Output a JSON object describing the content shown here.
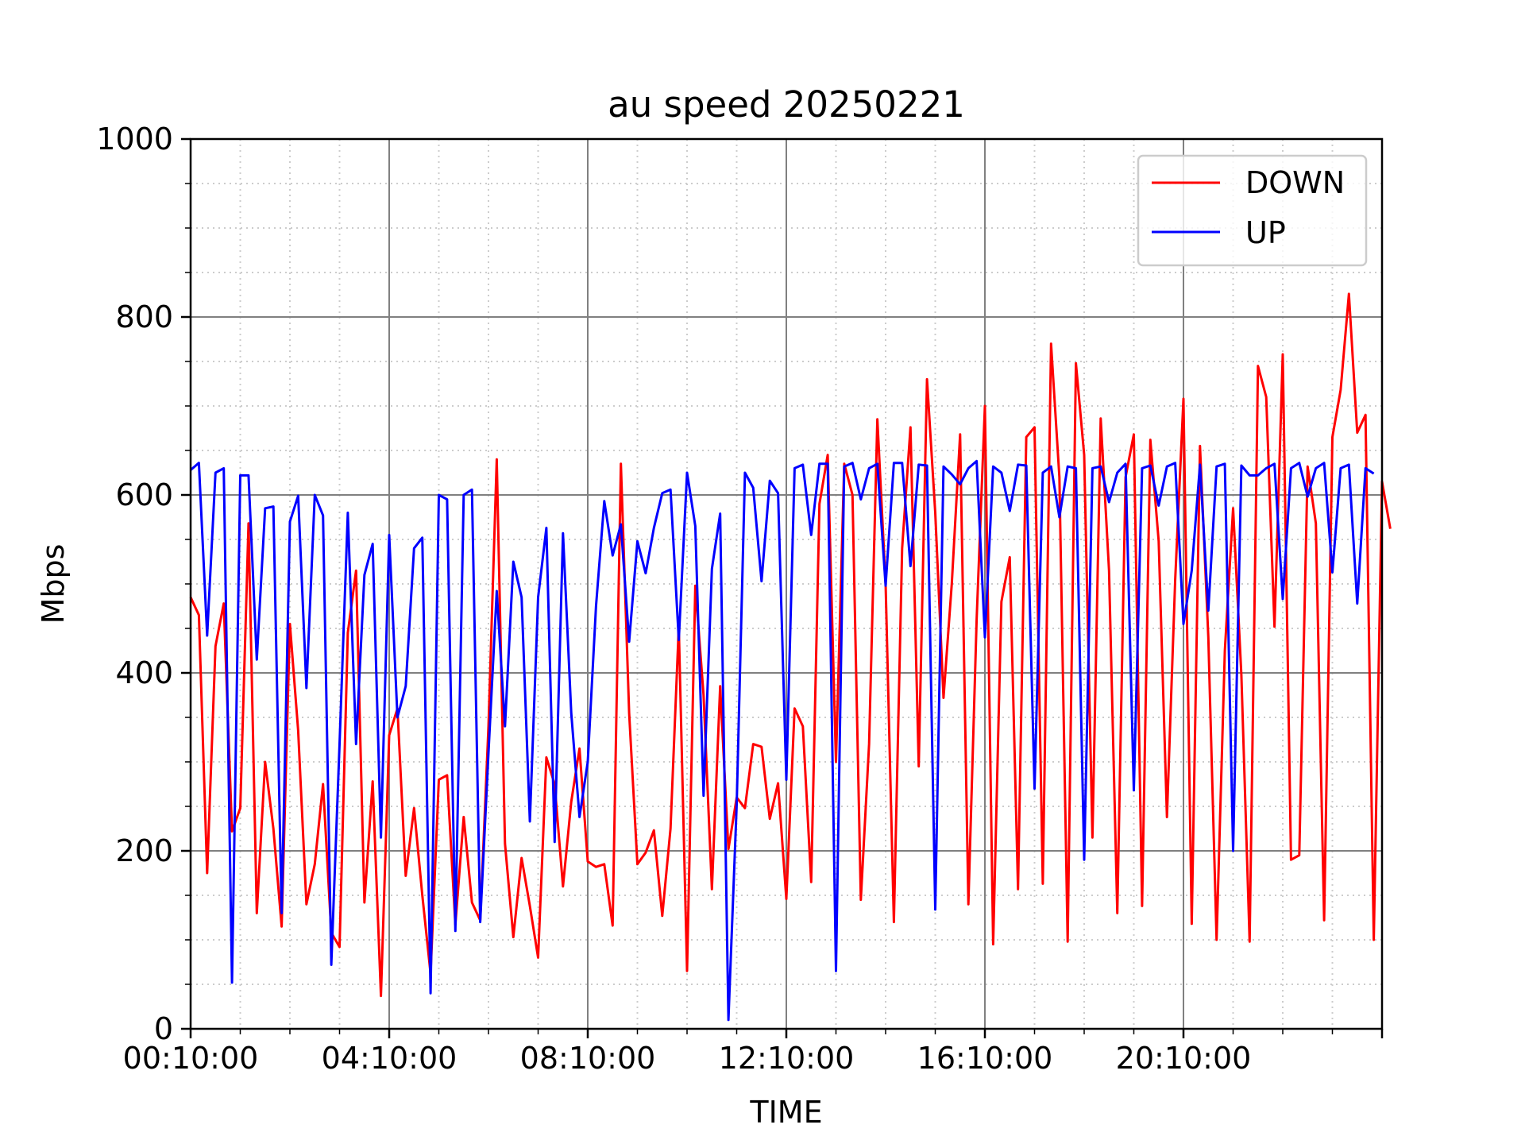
{
  "chart_data": {
    "type": "line",
    "title": "au speed 20250221",
    "xlabel": "TIME",
    "ylabel": "Mbps",
    "ylim": [
      0,
      1000
    ],
    "xlim": [
      "00:10:00",
      "24:10:00"
    ],
    "x_interval_minutes": 10,
    "x_first": "00:10:00",
    "yticks": [
      0,
      200,
      400,
      600,
      800,
      1000
    ],
    "xtick_labels": [
      "00:10:00",
      "04:10:00",
      "08:10:00",
      "12:10:00",
      "16:10:00",
      "20:10:00"
    ],
    "grid": "major solid gray, minor dotted light gray",
    "legend": "top-right",
    "series": [
      {
        "name": "DOWN",
        "color": "#ff0000",
        "values": [
          485,
          465,
          175,
          430,
          478,
          222,
          248,
          568,
          130,
          300,
          225,
          115,
          455,
          335,
          140,
          185,
          275,
          108,
          92,
          445,
          515,
          142,
          278,
          37,
          330,
          360,
          172,
          248,
          150,
          62,
          280,
          285,
          117,
          238,
          142,
          122,
          340,
          640,
          208,
          103,
          192,
          138,
          80,
          305,
          275,
          160,
          255,
          315,
          188,
          182,
          185,
          116,
          635,
          355,
          185,
          198,
          223,
          127,
          225,
          452,
          65,
          498,
          375,
          157,
          385,
          202,
          260,
          248,
          320,
          317,
          236,
          276,
          146,
          360,
          340,
          165,
          590,
          645,
          300,
          635,
          600,
          145,
          320,
          685,
          500,
          120,
          540,
          676,
          295,
          730,
          580,
          372,
          500,
          668,
          140,
          460,
          700,
          95,
          480,
          530,
          157,
          665,
          676,
          163,
          770,
          620,
          98,
          748,
          645,
          215,
          686,
          515,
          130,
          620,
          668,
          138,
          662,
          548,
          238,
          505,
          708,
          118,
          655,
          440,
          100,
          425,
          585,
          398,
          98,
          745,
          710,
          452,
          758,
          190,
          195,
          632,
          568,
          122,
          665,
          718,
          826,
          670,
          690,
          100,
          615,
          562
        ]
      },
      {
        "name": "UP",
        "color": "#0000ff",
        "values": [
          628,
          636,
          442,
          625,
          630,
          52,
          622,
          622,
          415,
          585,
          587,
          130,
          570,
          599,
          383,
          600,
          577,
          72,
          320,
          580,
          320,
          510,
          545,
          215,
          555,
          350,
          385,
          540,
          552,
          40,
          600,
          595,
          110,
          600,
          606,
          120,
          310,
          492,
          340,
          525,
          485,
          233,
          485,
          563,
          210,
          557,
          355,
          238,
          300,
          475,
          593,
          532,
          567,
          435,
          548,
          512,
          563,
          602,
          606,
          437,
          625,
          565,
          262,
          517,
          579,
          10,
          252,
          625,
          608,
          503,
          616,
          602,
          280,
          630,
          634,
          555,
          635,
          635,
          65,
          632,
          636,
          595,
          630,
          635,
          498,
          636,
          636,
          520,
          634,
          633,
          134,
          632,
          623,
          612,
          630,
          638,
          440,
          632,
          625,
          582,
          634,
          633,
          270,
          625,
          632,
          575,
          632,
          630,
          190,
          630,
          632,
          592,
          625,
          635,
          268,
          630,
          633,
          588,
          632,
          636,
          455,
          515,
          634,
          470,
          632,
          635,
          200,
          633,
          622,
          622,
          630,
          635,
          483,
          630,
          636,
          598,
          630,
          636,
          513,
          630,
          634,
          478,
          630,
          624
        ]
      }
    ]
  }
}
